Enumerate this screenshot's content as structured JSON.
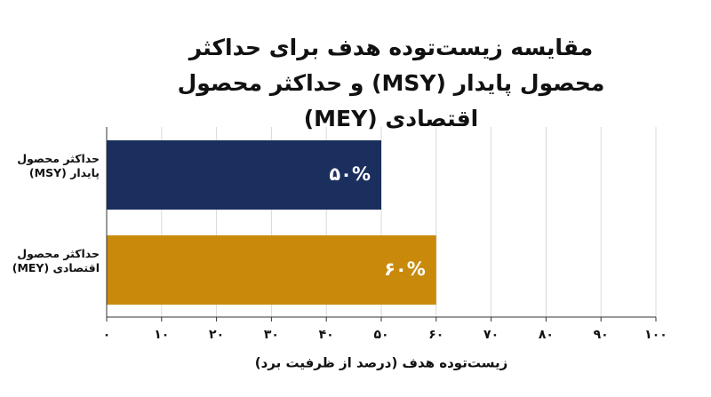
{
  "chart_data": {
    "type": "bar",
    "orientation": "horizontal",
    "title": "مقایسه زیست‌توده هدف برای حداکثر محصول پایدار (MSY) و حداکثر محصول اقتصادی (MEY)",
    "x_label": "زیست‌توده هدف (درصد از ظرفیت برد)",
    "categories": [
      "حداکثر محصول پایدار (MSY)",
      "حداکثر محصول اقتصادی (MEY)"
    ],
    "values": [
      50,
      60
    ],
    "value_labels": [
      "۵۰%",
      "۶۰%"
    ],
    "colors": [
      "#1b2f5e",
      "#c98a0c"
    ],
    "xlim": [
      0,
      100
    ],
    "xticks": [
      {
        "value": 0,
        "label": "۰"
      },
      {
        "value": 10,
        "label": "۱۰"
      },
      {
        "value": 20,
        "label": "۲۰"
      },
      {
        "value": 30,
        "label": "۳۰"
      },
      {
        "value": 40,
        "label": "۴۰"
      },
      {
        "value": 50,
        "label": "۵۰"
      },
      {
        "value": 60,
        "label": "۶۰"
      },
      {
        "value": 70,
        "label": "۷۰"
      },
      {
        "value": 80,
        "label": "۸۰"
      },
      {
        "value": 90,
        "label": "۹۰"
      },
      {
        "value": 100,
        "label": "۱۰۰"
      }
    ],
    "grid": true
  }
}
